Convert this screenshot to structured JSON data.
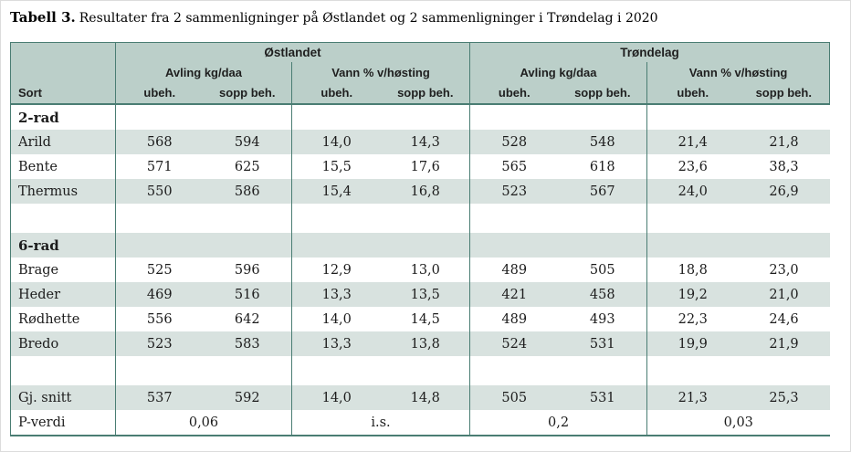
{
  "title": {
    "label": "Tabell 3.",
    "text": "Resultater fra 2 sammenligninger på Østlandet og 2 sammenligninger i Trøndelag i 2020"
  },
  "colors": {
    "header_bg": "#bbcfc9",
    "row_stripe": "#d8e2df",
    "border_line": "#4a7d73",
    "text": "#1c1c1c"
  },
  "table": {
    "sort_header": "Sort",
    "regions": [
      "Østlandet",
      "Trøndelag"
    ],
    "measures": [
      "Avling kg/daa",
      "Vann % v/høsting"
    ],
    "treatments": [
      "ubeh.",
      "sopp beh."
    ],
    "rows": [
      {
        "type": "section",
        "label": "2-rad",
        "values": [
          "",
          "",
          "",
          "",
          "",
          "",
          "",
          ""
        ]
      },
      {
        "type": "data",
        "label": "Arild",
        "values": [
          "568",
          "594",
          "14,0",
          "14,3",
          "528",
          "548",
          "21,4",
          "21,8"
        ]
      },
      {
        "type": "data",
        "label": "Bente",
        "values": [
          "571",
          "625",
          "15,5",
          "17,6",
          "565",
          "618",
          "23,6",
          "38,3"
        ]
      },
      {
        "type": "data",
        "label": "Thermus",
        "values": [
          "550",
          "586",
          "15,4",
          "16,8",
          "523",
          "567",
          "24,0",
          "26,9"
        ]
      },
      {
        "type": "spacer",
        "label": "",
        "values": [
          "",
          "",
          "",
          "",
          "",
          "",
          "",
          ""
        ]
      },
      {
        "type": "section",
        "label": "6-rad",
        "values": [
          "",
          "",
          "",
          "",
          "",
          "",
          "",
          ""
        ]
      },
      {
        "type": "data",
        "label": "Brage",
        "values": [
          "525",
          "596",
          "12,9",
          "13,0",
          "489",
          "505",
          "18,8",
          "23,0"
        ]
      },
      {
        "type": "data",
        "label": "Heder",
        "values": [
          "469",
          "516",
          "13,3",
          "13,5",
          "421",
          "458",
          "19,2",
          "21,0"
        ]
      },
      {
        "type": "data",
        "label": "Rødhette",
        "values": [
          "556",
          "642",
          "14,0",
          "14,5",
          "489",
          "493",
          "22,3",
          "24,6"
        ]
      },
      {
        "type": "data",
        "label": "Bredo",
        "values": [
          "523",
          "583",
          "13,3",
          "13,8",
          "524",
          "531",
          "19,9",
          "21,9"
        ]
      },
      {
        "type": "spacer",
        "label": "",
        "values": [
          "",
          "",
          "",
          "",
          "",
          "",
          "",
          ""
        ]
      },
      {
        "type": "data",
        "label": "Gj. snitt",
        "values": [
          "537",
          "592",
          "14,0",
          "14,8",
          "505",
          "531",
          "21,3",
          "25,3"
        ]
      },
      {
        "type": "pvalue",
        "label": "P-verdi",
        "values": [
          "0,06",
          "i.s.",
          "0,2",
          "0,03"
        ]
      }
    ]
  }
}
